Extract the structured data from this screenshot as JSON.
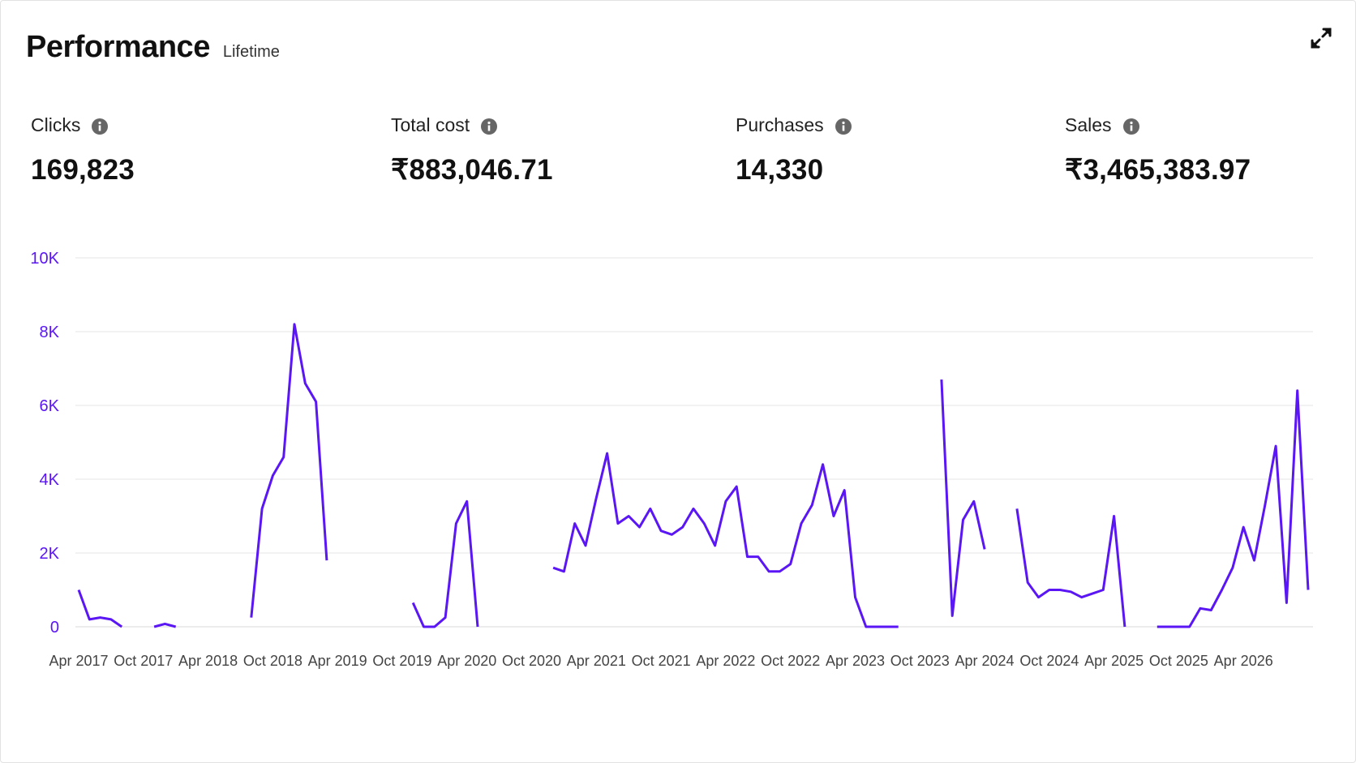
{
  "header": {
    "title": "Performance",
    "subtitle": "Lifetime"
  },
  "icons": {
    "expand": "expand-icon",
    "info": "info-icon"
  },
  "metrics": [
    {
      "label": "Clicks",
      "value": "169,823"
    },
    {
      "label": "Total cost",
      "value": "₹883,046.71"
    },
    {
      "label": "Purchases",
      "value": "14,330"
    },
    {
      "label": "Sales",
      "value": "₹3,465,383.97"
    }
  ],
  "colors": {
    "line": "#5a16f5",
    "grid": "#e6e6e6",
    "text": "#111111"
  },
  "chart_data": {
    "type": "line",
    "title": "",
    "xlabel": "",
    "ylabel": "",
    "ylim": [
      0,
      10000
    ],
    "grid": true,
    "y_ticks": [
      "0",
      "2K",
      "4K",
      "6K",
      "8K",
      "10K"
    ],
    "y_tick_values": [
      0,
      2000,
      4000,
      6000,
      8000,
      10000
    ],
    "x_ticks": [
      "Apr 2017",
      "Oct 2017",
      "Apr 2018",
      "Oct 2018",
      "Apr 2019",
      "Oct 2019",
      "Apr 2020",
      "Oct 2020",
      "Apr 2021",
      "Oct 2021",
      "Apr 2022",
      "Oct 2022",
      "Apr 2023",
      "Oct 2023",
      "Apr 2024",
      "Oct 2024",
      "Apr 2025",
      "Oct 2025",
      "Apr 2026"
    ],
    "series": [
      {
        "values": [
          1000,
          200,
          250,
          200,
          0,
          null,
          null,
          0,
          80,
          0,
          null,
          null,
          null,
          null,
          null,
          null,
          250,
          3200,
          4100,
          4600,
          8200,
          6600,
          6100,
          1800,
          null,
          null,
          null,
          null,
          null,
          null,
          null,
          650,
          0,
          0,
          250,
          2800,
          3400,
          0,
          null,
          null,
          null,
          null,
          null,
          null,
          1600,
          1500,
          2800,
          2200,
          3500,
          4700,
          2800,
          3000,
          2700,
          3200,
          2600,
          2500,
          2700,
          3200,
          2800,
          2200,
          3400,
          3800,
          1900,
          1900,
          1500,
          1500,
          1700,
          2800,
          3300,
          4400,
          3000,
          3700,
          800,
          0,
          0,
          0,
          0,
          null,
          null,
          null,
          6700,
          300,
          2900,
          3400,
          2100,
          null,
          null,
          3200,
          1200,
          800,
          1000,
          1000,
          950,
          800,
          900,
          1000,
          3000,
          0,
          null,
          null,
          0,
          0,
          0,
          0,
          500,
          450,
          1000,
          1600,
          2700,
          1800,
          3300,
          4900,
          650,
          6400,
          1000
        ]
      }
    ]
  }
}
